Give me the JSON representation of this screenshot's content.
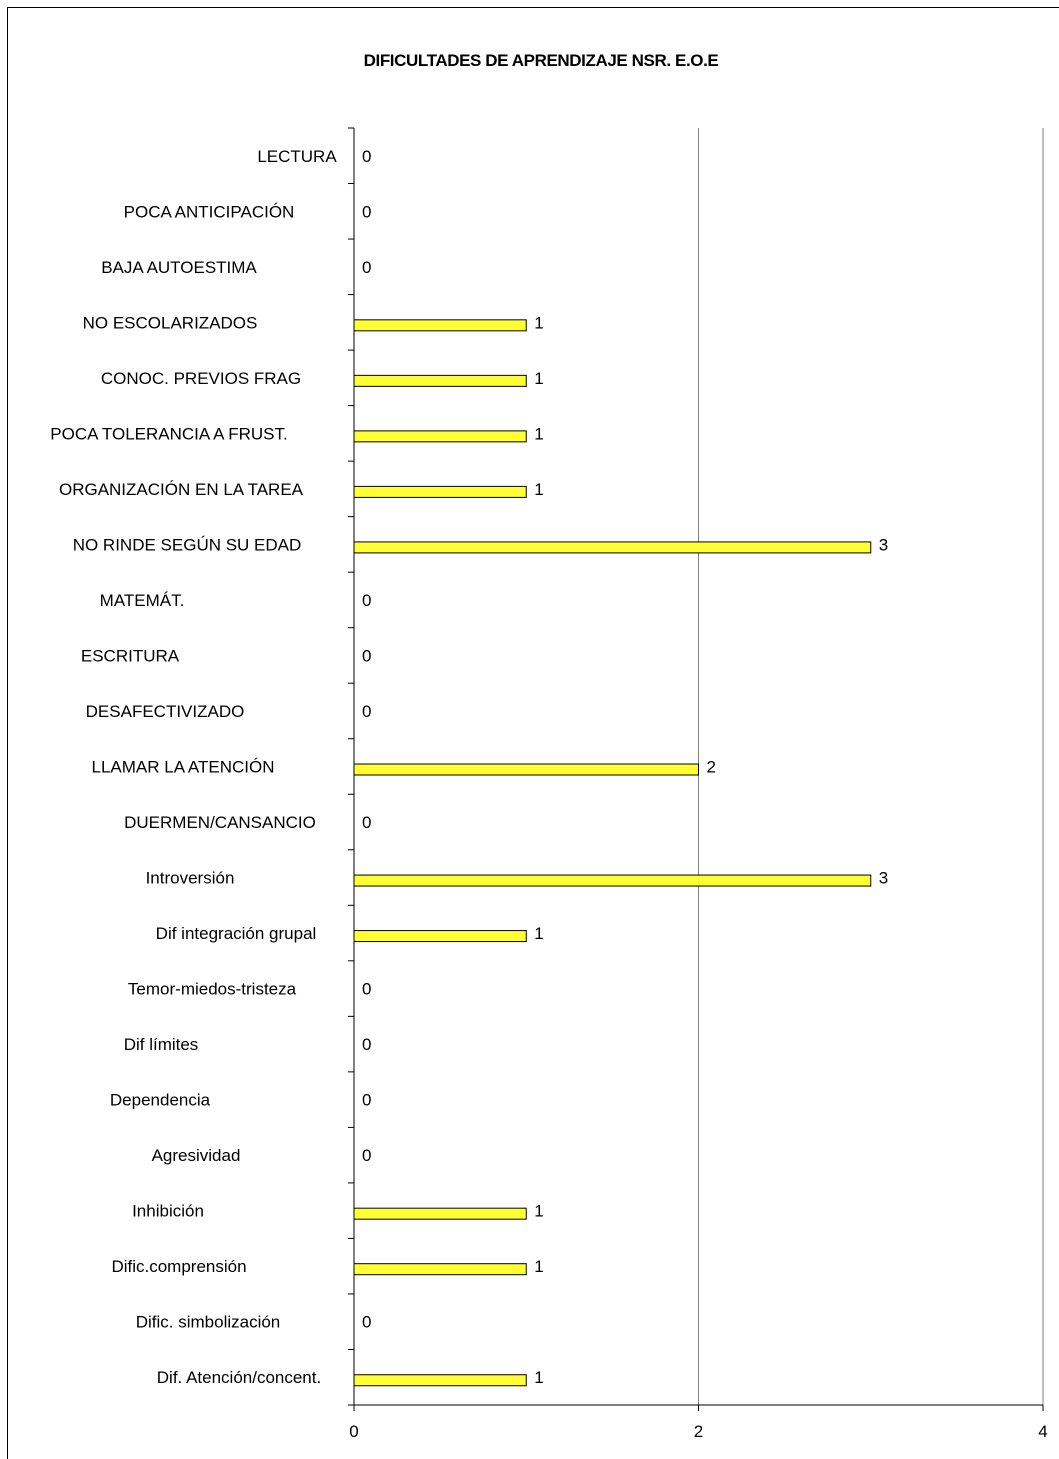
{
  "chart_data": {
    "type": "bar",
    "orientation": "horizontal",
    "title": "DIFICULTADES DE APRENDIZAJE NSR. E.O.E",
    "xlabel": "",
    "ylabel": "",
    "xlim": [
      0,
      4
    ],
    "x_ticks": [
      "0",
      "2",
      "4"
    ],
    "grid": "vertical major gridlines",
    "legend": "none",
    "bar_color": "#ffff33",
    "categories": [
      "LECTURA",
      "POCA ANTICIPACIÓN",
      "BAJA AUTOESTIMA",
      "NO ESCOLARIZADOS",
      "CONOC. PREVIOS FRAG",
      "POCA TOLERANCIA A FRUST.",
      "ORGANIZACIÓN EN LA TAREA",
      "NO RINDE SEGÚN SU EDAD",
      "MATEMÁT.",
      "ESCRITURA",
      "DESAFECTIVIZADO",
      "LLAMAR LA ATENCIÓN",
      "DUERMEN/CANSANCIO",
      "Introversión",
      "Dif integración grupal",
      "Temor-miedos-tristeza",
      "Dif límites",
      "Dependencia",
      "Agresividad",
      "Inhibición",
      "Dific.comprensión",
      "Dific.  simbolización",
      "Dif. Atención/concent."
    ],
    "values": [
      0,
      0,
      0,
      1,
      1,
      1,
      1,
      3,
      0,
      0,
      0,
      2,
      0,
      3,
      1,
      0,
      0,
      0,
      0,
      1,
      1,
      0,
      1
    ]
  }
}
